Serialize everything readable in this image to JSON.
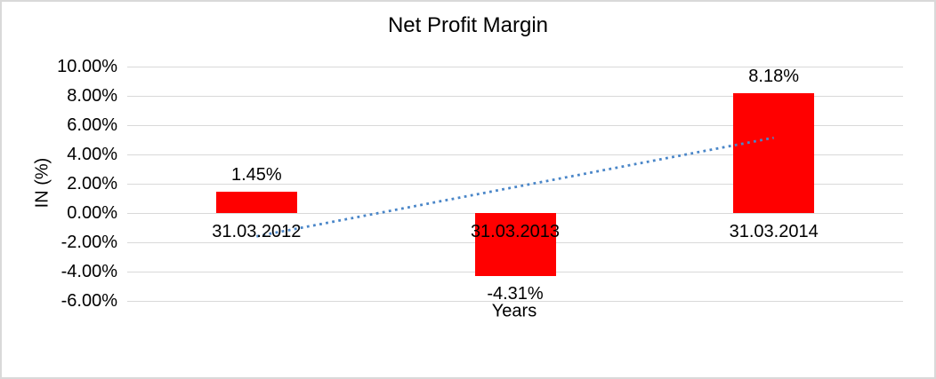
{
  "chart_data": {
    "type": "bar",
    "title": "Net Profit Margin",
    "xlabel": "Years",
    "ylabel": "IN (%)",
    "categories": [
      "31.03.2012",
      "31.03.2013",
      "31.03.2014"
    ],
    "values": [
      1.45,
      -4.31,
      8.18
    ],
    "data_labels": [
      "1.45%",
      "-4.31%",
      "8.18%"
    ],
    "ylim": [
      -6,
      10
    ],
    "yticks": [
      {
        "value": 10,
        "label": "10.00%"
      },
      {
        "value": 8,
        "label": "8.00%"
      },
      {
        "value": 6,
        "label": "6.00%"
      },
      {
        "value": 4,
        "label": "4.00%"
      },
      {
        "value": 2,
        "label": "2.00%"
      },
      {
        "value": 0,
        "label": "0.00%"
      },
      {
        "value": -2,
        "label": "-2.00%"
      },
      {
        "value": -4,
        "label": "-4.00%"
      },
      {
        "value": -6,
        "label": "-6.00%"
      }
    ],
    "grid": true,
    "legend": "none",
    "colors": {
      "bar": "#FF0000",
      "text": "#000000",
      "gridline": "#D9D9D9",
      "frame_border": "#D9D9D9",
      "trendline": "#4A86C8"
    },
    "trendline": {
      "type": "linear",
      "style": "dotted",
      "start_value": -1.59,
      "end_value": 5.14
    }
  }
}
